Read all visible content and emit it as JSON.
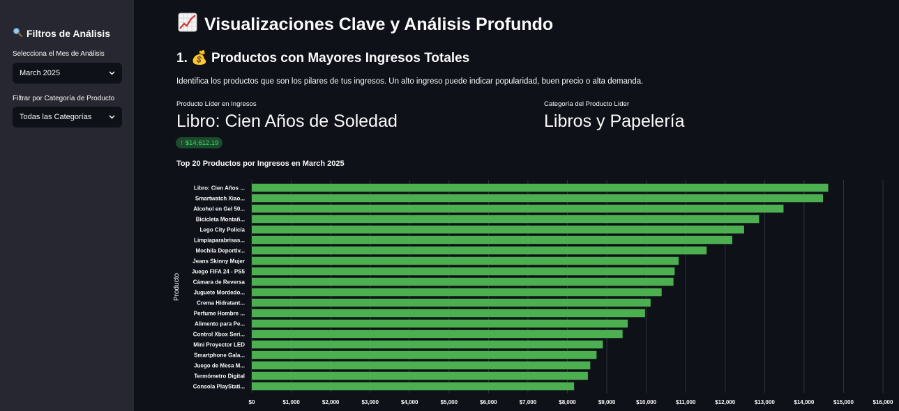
{
  "sidebar": {
    "title": "Filtros de Análisis",
    "month_label": "Selecciona el Mes de Análisis",
    "month_value": "March 2025",
    "category_label": "Filtrar por Categoría de Producto",
    "category_value": "Todas las Categorías"
  },
  "main": {
    "title": "Visualizaciones Clave y Análisis Profundo",
    "section_title": "1. 💰 Productos con Mayores Ingresos Totales",
    "description": "Identifica los productos que son los pilares de tus ingresos. Un alto ingreso puede indicar popularidad, buen precio o alta demanda.",
    "metric1": {
      "label": "Producto Líder en Ingresos",
      "value": "Libro: Cien Años de Soledad",
      "delta": "$14,612.19"
    },
    "metric2": {
      "label": "Categoría del Producto Líder",
      "value": "Libros y Papelería"
    },
    "chart_title": "Top 20 Productos por Ingresos en March 2025"
  },
  "colors": {
    "bar": "#4caf50",
    "background": "#0e1117",
    "sidebar": "#262730",
    "delta_text": "#3dd56d"
  },
  "chart_data": {
    "type": "bar",
    "orientation": "horizontal",
    "ylabel": "Producto",
    "xlabel": "",
    "xlim": [
      0,
      16000
    ],
    "xticks": [
      "$0",
      "$1,000",
      "$2,000",
      "$3,000",
      "$4,000",
      "$5,000",
      "$6,000",
      "$7,000",
      "$8,000",
      "$9,000",
      "$10,000",
      "$11,000",
      "$12,000",
      "$13,000",
      "$14,000",
      "$15,000",
      "$16,000"
    ],
    "grid": true,
    "categories": [
      "Libro: Cien Años ...",
      "Smartwatch Xiao...",
      "Alcohol en Gel 50...",
      "Bicicleta Montañ...",
      "Lego City Policía",
      "Limpiaparabrisas...",
      "Mochila Deportiv...",
      "Jeans Skinny Mujer",
      "Juego FIFA 24 - PS5",
      "Cámara de Reversa",
      "Juguete Mordedo...",
      "Crema Hidratant...",
      "Perfume Hombre ...",
      "Alimento para Pe...",
      "Control Xbox Seri...",
      "Mini Proyector LED",
      "Smartphone Gala...",
      "Juego de Mesa M...",
      "Termómetro Digital",
      "Consola PlayStati..."
    ],
    "values": [
      14612,
      14480,
      13480,
      12860,
      12480,
      12180,
      11530,
      10820,
      10720,
      10690,
      10390,
      10110,
      9970,
      9530,
      9400,
      8900,
      8740,
      8580,
      8520,
      8170
    ]
  }
}
